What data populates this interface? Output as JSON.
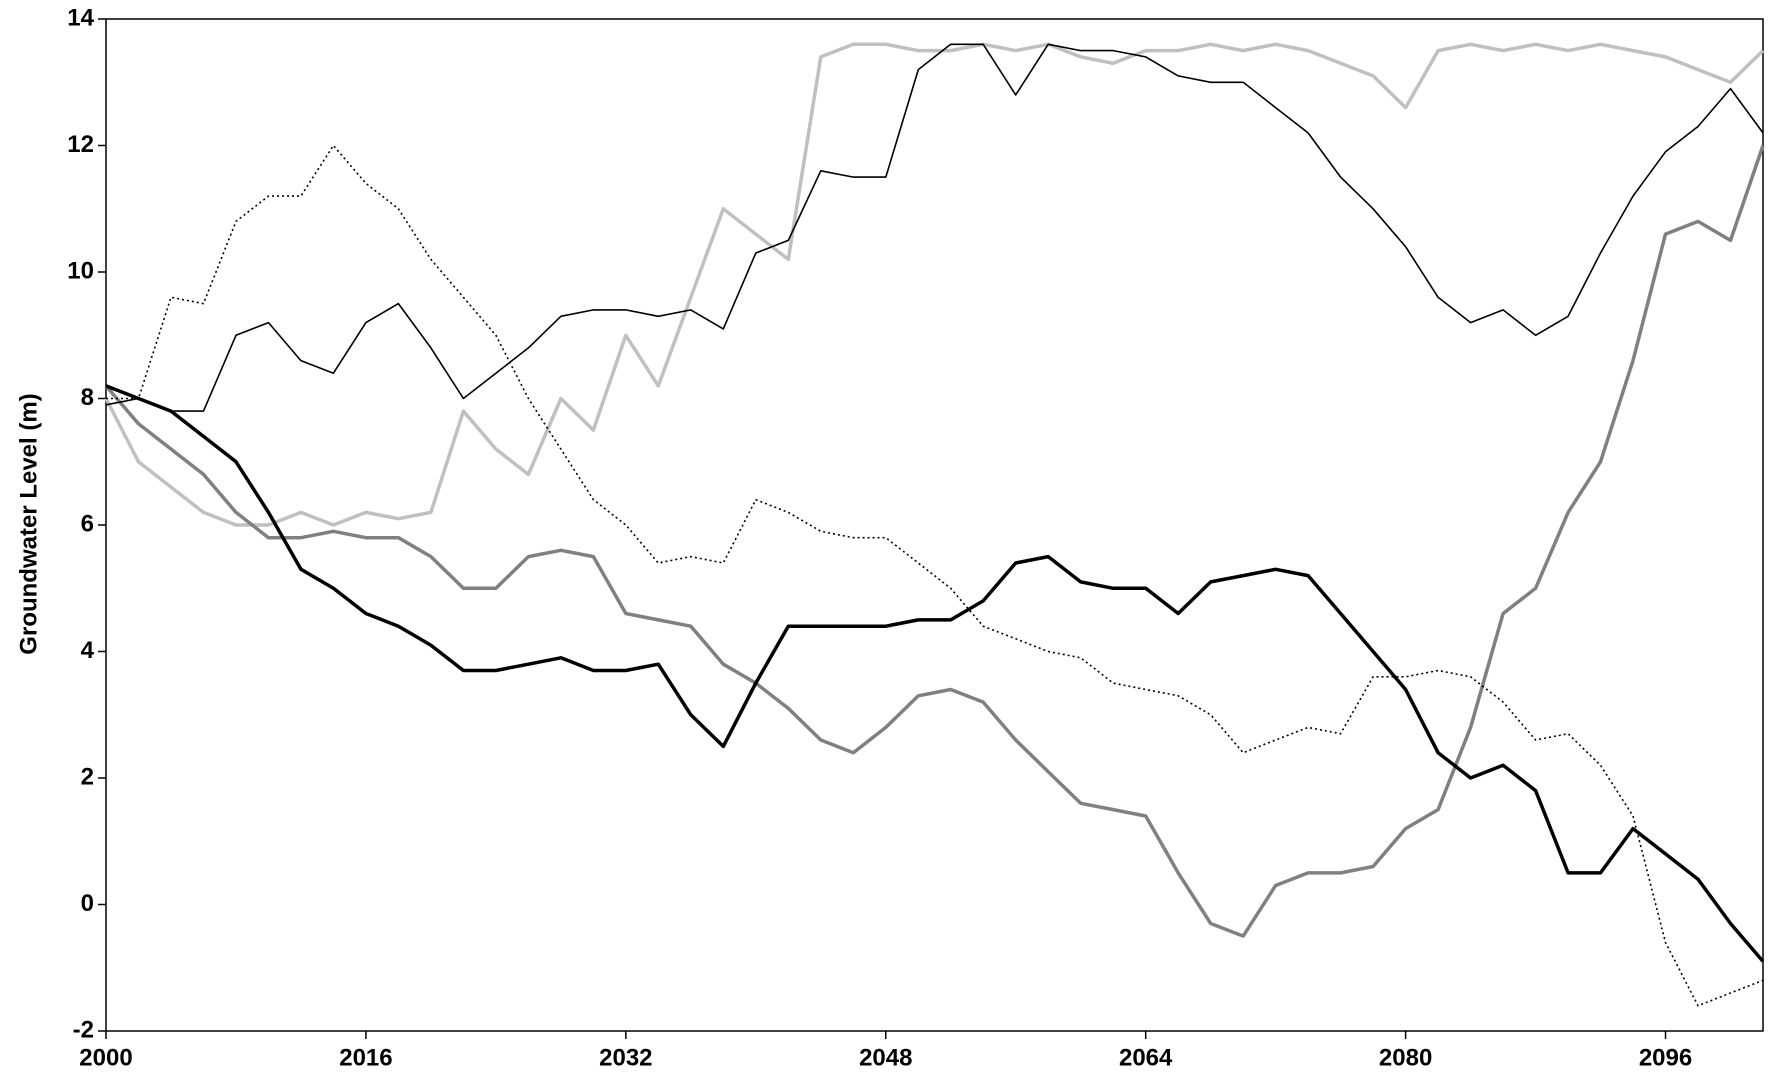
{
  "chart_data": {
    "type": "line",
    "y_label": "Groundwater Level (m)",
    "x": [
      2000,
      2002,
      2004,
      2006,
      2008,
      2010,
      2012,
      2014,
      2016,
      2018,
      2020,
      2022,
      2024,
      2026,
      2028,
      2030,
      2032,
      2034,
      2036,
      2038,
      2040,
      2042,
      2044,
      2046,
      2048,
      2050,
      2052,
      2054,
      2056,
      2058,
      2060,
      2062,
      2064,
      2066,
      2068,
      2070,
      2072,
      2074,
      2076,
      2078,
      2080,
      2082,
      2084,
      2086,
      2088,
      2090,
      2092,
      2094,
      2096,
      2098,
      2100,
      2102
    ],
    "xlim": [
      2000,
      2102
    ],
    "xticks": [
      2000,
      2016,
      2032,
      2048,
      2064,
      2080,
      2096
    ],
    "ylim": [
      -2,
      14
    ],
    "yticks": [
      -2,
      0,
      2,
      4,
      6,
      8,
      10,
      12,
      14
    ],
    "grid": false,
    "series": [
      {
        "color": "#000000",
        "width": 3.5,
        "dash": "none",
        "values": [
          8.2,
          8.0,
          7.8,
          7.4,
          7.0,
          6.2,
          5.3,
          5.0,
          4.6,
          4.4,
          4.1,
          3.7,
          3.7,
          3.8,
          3.9,
          3.7,
          3.7,
          3.8,
          3.0,
          2.5,
          3.5,
          4.4,
          4.4,
          4.4,
          4.4,
          4.5,
          4.5,
          4.8,
          5.4,
          5.5,
          5.1,
          5.0,
          5.0,
          4.6,
          5.1,
          5.2,
          5.3,
          5.2,
          4.6,
          4.0,
          3.4,
          2.4,
          2.0,
          2.2,
          1.8,
          0.5,
          0.5,
          1.2,
          0.8,
          0.4,
          -0.3,
          -0.9
        ]
      },
      {
        "color": "#808080",
        "width": 3.5,
        "dash": "none",
        "values": [
          8.2,
          7.6,
          7.2,
          6.8,
          6.2,
          5.8,
          5.8,
          5.9,
          5.8,
          5.8,
          5.5,
          5.0,
          5.0,
          5.5,
          5.6,
          5.5,
          4.6,
          4.5,
          4.4,
          3.8,
          3.5,
          3.1,
          2.6,
          2.4,
          2.8,
          3.3,
          3.4,
          3.2,
          2.6,
          2.1,
          1.6,
          1.5,
          1.4,
          0.5,
          -0.3,
          -0.5,
          0.3,
          0.5,
          0.5,
          0.6,
          1.2,
          1.5,
          2.8,
          4.6,
          5.0,
          6.2,
          7.0,
          8.6,
          10.6,
          10.8,
          10.5,
          12.0
        ]
      },
      {
        "color": "#c0c0c0",
        "width": 3.5,
        "dash": "none",
        "values": [
          8.0,
          7.0,
          6.6,
          6.2,
          6.0,
          6.0,
          6.2,
          6.0,
          6.2,
          6.1,
          6.2,
          7.8,
          7.2,
          6.8,
          8.0,
          7.5,
          9.0,
          8.2,
          9.6,
          11.0,
          10.6,
          10.2,
          13.4,
          13.6,
          13.6,
          13.5,
          13.5,
          13.6,
          13.5,
          13.6,
          13.4,
          13.3,
          13.5,
          13.5,
          13.6,
          13.5,
          13.6,
          13.5,
          13.3,
          13.1,
          12.6,
          13.5,
          13.6,
          13.5,
          13.6,
          13.5,
          13.6,
          13.5,
          13.4,
          13.2,
          13.0,
          13.5
        ]
      },
      {
        "color": "#000000",
        "width": 1.6,
        "dash": "none",
        "values": [
          7.9,
          8.0,
          7.8,
          7.8,
          9.0,
          9.2,
          8.6,
          8.4,
          9.2,
          9.5,
          8.8,
          8.0,
          8.4,
          8.8,
          9.3,
          9.4,
          9.4,
          9.3,
          9.4,
          9.1,
          10.3,
          10.5,
          11.6,
          11.5,
          11.5,
          13.2,
          13.6,
          13.6,
          12.8,
          13.6,
          13.5,
          13.5,
          13.4,
          13.1,
          13.0,
          13.0,
          12.6,
          12.2,
          11.5,
          11.0,
          10.4,
          9.6,
          9.2,
          9.4,
          9.0,
          9.3,
          10.3,
          11.2,
          11.9,
          12.3,
          12.9,
          12.2
        ]
      },
      {
        "color": "#000000",
        "width": 1.6,
        "dash": "2 3",
        "values": [
          8.0,
          8.0,
          9.6,
          9.5,
          10.8,
          11.2,
          11.2,
          12.0,
          11.4,
          11.0,
          10.2,
          9.6,
          9.0,
          8.0,
          7.2,
          6.4,
          6.0,
          5.4,
          5.5,
          5.4,
          6.4,
          6.2,
          5.9,
          5.8,
          5.8,
          5.4,
          5.0,
          4.4,
          4.2,
          4.0,
          3.9,
          3.5,
          3.4,
          3.3,
          3.0,
          2.4,
          2.6,
          2.8,
          2.7,
          3.6,
          3.6,
          3.7,
          3.6,
          3.2,
          2.6,
          2.7,
          2.2,
          1.4,
          -0.6,
          -1.6,
          -1.4,
          -1.2
        ]
      }
    ]
  }
}
